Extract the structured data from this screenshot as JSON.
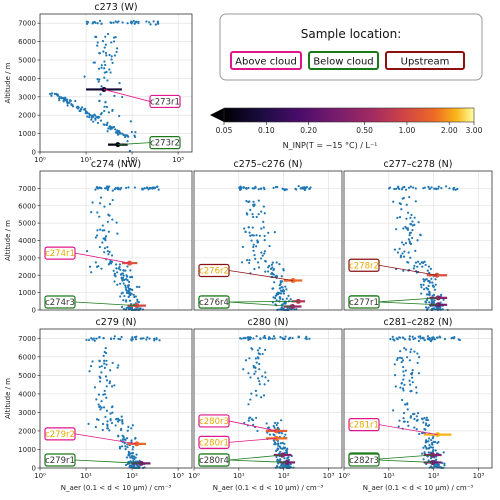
{
  "legend": {
    "title": "Sample location:",
    "items": [
      {
        "label": "Above cloud",
        "color": "#e0168c"
      },
      {
        "label": "Below cloud",
        "color": "#1a7a1a"
      },
      {
        "label": "Upstream",
        "color": "#8b1010"
      }
    ]
  },
  "colorbar": {
    "ticks": [
      "0.05",
      "0.10",
      "0.20",
      "0.50",
      "1.00",
      "2.00",
      "3.00"
    ],
    "tick_values": [
      0.05,
      0.1,
      0.2,
      0.5,
      1.0,
      2.0,
      3.0
    ],
    "label": "N_INP(T = −15 °C) / L⁻¹",
    "range": [
      0.05,
      3.0
    ],
    "colormap": "inferno",
    "scale": "log"
  },
  "labels": {
    "ylabel": "Altitude / m",
    "xlabel": "N_aer (0.1 < d < 10 μm) / cm⁻³"
  },
  "chart_data": [
    {
      "type": "scatter",
      "title": "c273 (W)",
      "xscale": "log",
      "xlim": [
        1,
        2000
      ],
      "ylim": [
        0,
        7500
      ],
      "xticks": [
        "10⁰",
        "10¹",
        "10²",
        "10³"
      ],
      "yticks": [
        "0",
        "1000",
        "2000",
        "3000",
        "4000",
        "5000",
        "6000",
        "7000"
      ],
      "samples": [
        {
          "label": "c273r1",
          "type": "Above cloud",
          "altitude": 3400,
          "x": [
            10,
            60
          ],
          "ninp": 0.08
        },
        {
          "label": "c273r2",
          "type": "Below cloud",
          "altitude": 400,
          "x": [
            30,
            80
          ],
          "ninp": 0.06
        }
      ]
    },
    {
      "type": "scatter",
      "title": "c274 (NW)",
      "xscale": "log",
      "xlim": [
        1,
        2000
      ],
      "ylim": [
        0,
        8000
      ],
      "xticks": [],
      "yticks": [
        "0",
        "1000",
        "2000",
        "3000",
        "4000",
        "5000",
        "6000",
        "7000"
      ],
      "samples": [
        {
          "label": "c274r1",
          "type": "Above cloud",
          "altitude": 2700,
          "x": [
            60,
            130
          ],
          "ninp": 1.2
        },
        {
          "label": "c274r3",
          "type": "Below cloud",
          "altitude": 250,
          "x": [
            80,
            200
          ],
          "ninp": 1.0
        }
      ]
    },
    {
      "type": "scatter",
      "title": "c275–c276 (N)",
      "xscale": "log",
      "xlim": [
        1,
        2000
      ],
      "ylim": [
        0,
        8000
      ],
      "xticks": [],
      "yticks": [],
      "samples": [
        {
          "label": "c276r2",
          "type": "Upstream",
          "altitude": 1700,
          "x": [
            100,
            260
          ],
          "ninp": 1.5
        },
        {
          "label": "c275r1",
          "type": "Below cloud",
          "altitude": 500,
          "x": [
            150,
            300
          ],
          "ninp": 0.7
        },
        {
          "label": "c276r4",
          "type": "Below cloud",
          "altitude": 200,
          "x": [
            100,
            250
          ],
          "ninp": 0.5
        }
      ]
    },
    {
      "type": "scatter",
      "title": "c277–c278 (N)",
      "xscale": "log",
      "xlim": [
        1,
        2000
      ],
      "ylim": [
        0,
        8000
      ],
      "xticks": [],
      "yticks": [],
      "samples": [
        {
          "label": "c278r2",
          "type": "Upstream",
          "altitude": 2000,
          "x": [
            70,
            200
          ],
          "ninp": 1.1
        },
        {
          "label": "c278r4",
          "type": "Below cloud",
          "altitude": 700,
          "x": [
            80,
            200
          ],
          "ninp": 0.4
        },
        {
          "label": "c277r1",
          "type": "Below cloud",
          "altitude": 300,
          "x": [
            80,
            200
          ],
          "ninp": 0.3
        }
      ]
    },
    {
      "type": "scatter",
      "title": "c279 (N)",
      "xscale": "log",
      "xlim": [
        1,
        2000
      ],
      "ylim": [
        0,
        7500
      ],
      "xticks": [
        "10⁰",
        "10¹",
        "10²",
        "10³"
      ],
      "yticks": [
        "0",
        "1000",
        "2000",
        "3000",
        "4000",
        "5000",
        "6000",
        "7000"
      ],
      "samples": [
        {
          "label": "c279r2",
          "type": "Above cloud",
          "altitude": 1300,
          "x": [
            80,
            200
          ],
          "ninp": 1.5
        },
        {
          "label": "c279r1",
          "type": "Below cloud",
          "altitude": 250,
          "x": [
            100,
            250
          ],
          "ninp": 0.3
        }
      ]
    },
    {
      "type": "scatter",
      "title": "c280 (N)",
      "xscale": "log",
      "xlim": [
        1,
        2000
      ],
      "ylim": [
        0,
        7500
      ],
      "xticks": [
        "10⁰",
        "10¹",
        "10²",
        "10³"
      ],
      "yticks": [],
      "samples": [
        {
          "label": "c280r3",
          "type": "Above cloud",
          "altitude": 2000,
          "x": [
            40,
            120
          ],
          "ninp": 1.3
        },
        {
          "label": "c280r1",
          "type": "Above cloud",
          "altitude": 1600,
          "x": [
            40,
            120
          ],
          "ninp": 1.6
        },
        {
          "label": "c280r2",
          "type": "Below cloud",
          "altitude": 700,
          "x": [
            60,
            150
          ],
          "ninp": 0.4
        },
        {
          "label": "c280r4",
          "type": "Below cloud",
          "altitude": 300,
          "x": [
            80,
            180
          ],
          "ninp": 0.3
        }
      ]
    },
    {
      "type": "scatter",
      "title": "c281–c282 (N)",
      "xscale": "log",
      "xlim": [
        1,
        2000
      ],
      "ylim": [
        0,
        7500
      ],
      "xticks": [
        "10⁰",
        "10¹",
        "10²",
        "10³"
      ],
      "yticks": [],
      "samples": [
        {
          "label": "c281r1",
          "type": "Above cloud",
          "altitude": 1800,
          "x": [
            60,
            250
          ],
          "ninp": 2.2
        },
        {
          "label": "c282r2",
          "type": "Below cloud",
          "altitude": 700,
          "x": [
            60,
            150
          ],
          "ninp": 0.4
        },
        {
          "label": "c282r3",
          "type": "Below cloud",
          "altitude": 300,
          "x": [
            60,
            150
          ],
          "ninp": 0.3
        }
      ]
    }
  ]
}
